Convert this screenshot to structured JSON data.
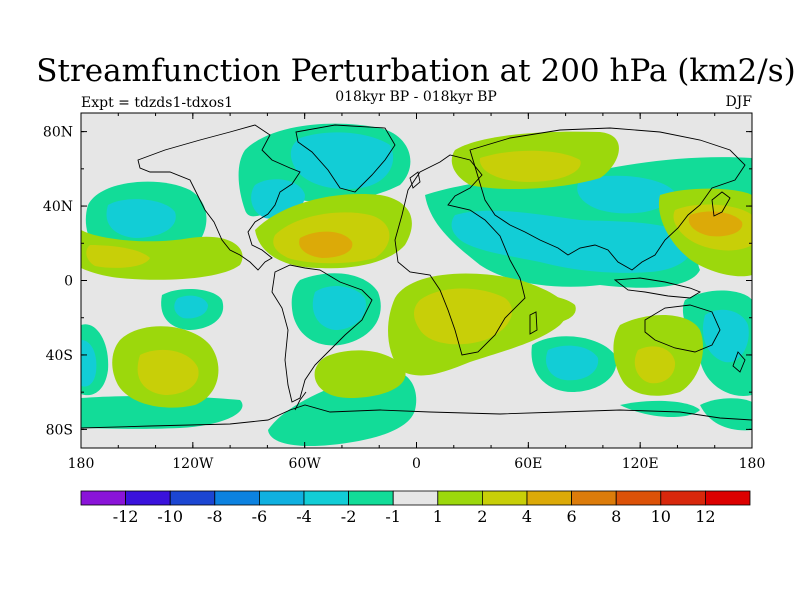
{
  "title": "Streamfunction Perturbation at 200 hPa (km2/s)",
  "subtitle": "018kyr BP - 018kyr BP",
  "left_label": "Expt = tdzds1-tdxos1",
  "right_label": "DJF",
  "colors": {
    "ocean_background": "#e6e6e6",
    "coastline": "#000000"
  },
  "chart_data": {
    "type": "filled-contour-map",
    "variable": "streamfunction perturbation",
    "level": "200 hPa",
    "units": "km2/s",
    "season": "DJF",
    "lon_range": [
      -180,
      180
    ],
    "lat_range": [
      -90,
      90
    ],
    "x_ticks": [
      {
        "value": -180,
        "label": "180"
      },
      {
        "value": -120,
        "label": "120W"
      },
      {
        "value": -60,
        "label": "60W"
      },
      {
        "value": 0,
        "label": "0"
      },
      {
        "value": 60,
        "label": "60E"
      },
      {
        "value": 120,
        "label": "120E"
      },
      {
        "value": 180,
        "label": "180"
      }
    ],
    "y_ticks": [
      {
        "value": 80,
        "label": "80N"
      },
      {
        "value": 40,
        "label": "40N"
      },
      {
        "value": 0,
        "label": "0"
      },
      {
        "value": -40,
        "label": "40S"
      },
      {
        "value": -80,
        "label": "80S"
      }
    ],
    "colorbar": {
      "levels": [
        "-12",
        "-10",
        "-8",
        "-6",
        "-4",
        "-2",
        "-1",
        "1",
        "2",
        "4",
        "6",
        "8",
        "10",
        "12"
      ],
      "colors": [
        "#8a14d8",
        "#3a12dc",
        "#1c46d2",
        "#0c82e0",
        "#10b0e0",
        "#12cdd6",
        "#12dc98",
        "#e6e6e6",
        "#9cd80c",
        "#c8cf08",
        "#dcaa08",
        "#dc7c0a",
        "#dc5208",
        "#d8280c",
        "#dc0000"
      ]
    },
    "features": [
      {
        "name": "negative anomaly over Greenland / northern Canada",
        "lon": -42,
        "lat": 72,
        "value": -3
      },
      {
        "name": "negative anomaly over eastern North Pacific",
        "lon": -150,
        "lat": 35,
        "value": -3
      },
      {
        "name": "positive anomaly over Gulf of Mexico / Caribbean",
        "lon": -55,
        "lat": 20,
        "value": 3
      },
      {
        "name": "negative anomaly over South America",
        "lon": -40,
        "lat": -10,
        "value": -3
      },
      {
        "name": "positive anomaly over southern Africa",
        "lon": 25,
        "lat": -20,
        "value": 2
      },
      {
        "name": "negative anomaly over Asia / Maritime Continent",
        "lon": 110,
        "lat": 15,
        "value": -3
      },
      {
        "name": "positive anomaly over western North Pacific",
        "lon": 165,
        "lat": 30,
        "value": 3
      },
      {
        "name": "positive anomaly over South Pacific",
        "lon": -138,
        "lat": -48,
        "value": 2
      },
      {
        "name": "positive anomaly over southern Indian Ocean",
        "lon": 130,
        "lat": -45,
        "value": 2
      },
      {
        "name": "negative anomaly over Antarctic margin",
        "lon": -45,
        "lat": -70,
        "value": -1
      }
    ]
  }
}
